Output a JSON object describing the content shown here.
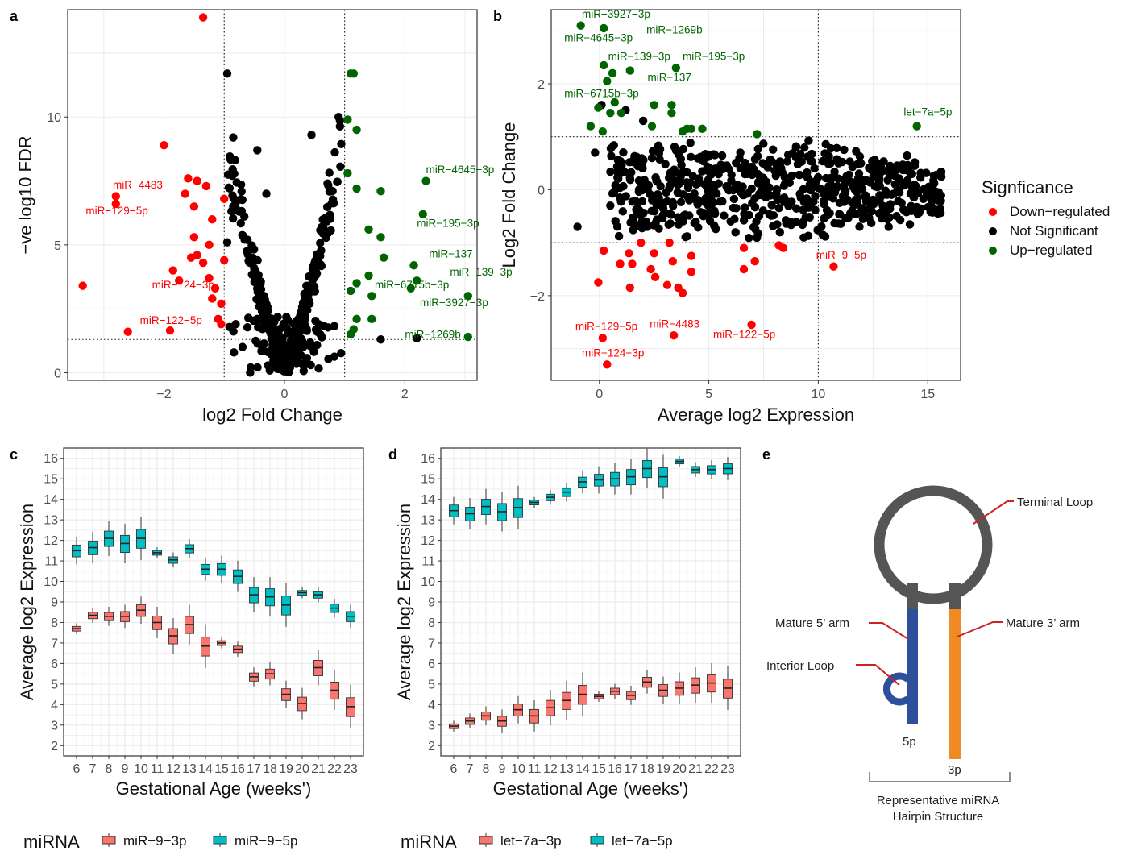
{
  "colors": {
    "down": "#ff0000",
    "ns": "#000000",
    "up": "#006400",
    "box_a": "#f8766d",
    "box_b": "#00bfc4",
    "loop": "#555555",
    "arm5": "#2e4f9c",
    "arm3": "#f08a24",
    "pointer": "#cc2222"
  },
  "panel_labels": {
    "a": "a",
    "b": "b",
    "c": "c",
    "d": "d",
    "e": "e"
  },
  "chart_data": [
    {
      "id": "a",
      "type": "scatter",
      "xlabel": "log2 Fold Change",
      "ylabel": "−ve log10 FDR",
      "xlim": [
        -3.6,
        3.2
      ],
      "ylim": [
        -0.3,
        14.2
      ],
      "xticks": [
        -2,
        0,
        2
      ],
      "xtick_labels": [
        "−2",
        "0",
        "2"
      ],
      "yticks": [
        0,
        5,
        10
      ],
      "ytick_labels": [
        "0",
        "5",
        "10"
      ],
      "grid": true,
      "reference_lines": {
        "x": [
          -1,
          1
        ],
        "y": [
          1.3
        ]
      },
      "groups": {
        "down": [
          [
            -1.35,
            13.9
          ],
          [
            -2.0,
            8.9
          ],
          [
            -1.6,
            7.6
          ],
          [
            -1.45,
            7.5
          ],
          [
            -1.3,
            7.3
          ],
          [
            -1.65,
            7.0
          ],
          [
            -1.5,
            6.5
          ],
          [
            -1.0,
            6.8
          ],
          [
            -1.2,
            6.0
          ],
          [
            -1.5,
            5.3
          ],
          [
            -1.45,
            4.6
          ],
          [
            -1.55,
            4.5
          ],
          [
            -1.35,
            4.3
          ],
          [
            -1.25,
            5.0
          ],
          [
            -1.0,
            4.4
          ],
          [
            -1.85,
            4.0
          ],
          [
            -1.75,
            3.6
          ],
          [
            -1.25,
            3.7
          ],
          [
            -1.15,
            3.3
          ],
          [
            -1.2,
            2.9
          ],
          [
            -1.05,
            2.7
          ],
          [
            -1.1,
            2.1
          ],
          [
            -1.05,
            1.9
          ],
          [
            -2.8,
            6.9
          ],
          [
            -2.8,
            6.6
          ],
          [
            -3.35,
            3.4
          ],
          [
            -2.6,
            1.6
          ],
          [
            -1.9,
            1.65
          ]
        ],
        "ns": [
          [
            -0.95,
            11.7
          ],
          [
            -0.85,
            9.2
          ],
          [
            -0.45,
            8.7
          ],
          [
            -0.3,
            7.0
          ],
          [
            0.45,
            9.3
          ],
          [
            0.9,
            10.0
          ],
          [
            1.6,
            1.3
          ],
          [
            2.2,
            1.35
          ],
          [
            -0.85,
            6.5
          ],
          [
            -0.75,
            6.3
          ],
          [
            -0.95,
            5.1
          ]
        ],
        "up": [
          [
            1.1,
            11.7
          ],
          [
            1.15,
            11.7
          ],
          [
            1.05,
            9.9
          ],
          [
            1.2,
            9.5
          ],
          [
            1.05,
            7.8
          ],
          [
            1.2,
            7.2
          ],
          [
            1.6,
            7.1
          ],
          [
            2.35,
            7.5
          ],
          [
            2.3,
            6.2
          ],
          [
            1.4,
            5.6
          ],
          [
            1.6,
            5.3
          ],
          [
            1.65,
            4.5
          ],
          [
            1.4,
            3.8
          ],
          [
            1.2,
            3.5
          ],
          [
            1.1,
            3.2
          ],
          [
            1.45,
            3.0
          ],
          [
            2.15,
            4.2
          ],
          [
            2.2,
            3.6
          ],
          [
            2.1,
            3.3
          ],
          [
            3.05,
            3.0
          ],
          [
            1.2,
            2.1
          ],
          [
            1.45,
            2.1
          ],
          [
            1.15,
            1.7
          ],
          [
            1.1,
            1.5
          ],
          [
            3.05,
            1.4
          ]
        ]
      },
      "ns_cloud": true,
      "annotations": [
        {
          "text": "miR−4483",
          "group": "down",
          "x": -2.85,
          "y": 7.2
        },
        {
          "text": "miR−129−5p",
          "group": "down",
          "x": -3.3,
          "y": 6.2
        },
        {
          "text": "miR−124−3p",
          "group": "down",
          "x": -2.2,
          "y": 3.3
        },
        {
          "text": "miR−122−5p",
          "group": "down",
          "x": -2.4,
          "y": 1.9
        },
        {
          "text": "miR−4645−3p",
          "group": "up",
          "x": 2.35,
          "y": 7.8
        },
        {
          "text": "miR−195−3p",
          "group": "up",
          "x": 2.2,
          "y": 5.7
        },
        {
          "text": "miR−137",
          "group": "up",
          "x": 2.4,
          "y": 4.5
        },
        {
          "text": "miR−139−3p",
          "group": "up",
          "x": 2.75,
          "y": 3.8
        },
        {
          "text": "miR−6715b−3p",
          "group": "up",
          "x": 1.5,
          "y": 3.3
        },
        {
          "text": "miR−3927−3p",
          "group": "up",
          "x": 2.25,
          "y": 2.6
        },
        {
          "text": "miR−1269b",
          "group": "up",
          "x": 2.0,
          "y": 1.35
        }
      ]
    },
    {
      "id": "b",
      "type": "scatter",
      "xlabel": "Average log2 Expression",
      "ylabel": "Log2 Fold Change",
      "xlim": [
        -2.2,
        16.5
      ],
      "ylim": [
        -3.6,
        3.4
      ],
      "xticks": [
        0,
        5,
        10,
        15
      ],
      "xtick_labels": [
        "0",
        "5",
        "10",
        "15"
      ],
      "yticks": [
        -2,
        0,
        2
      ],
      "ytick_labels": [
        "−2",
        "0",
        "2"
      ],
      "grid": true,
      "reference_lines": {
        "x": [
          10
        ],
        "y": [
          1,
          -1
        ]
      },
      "groups": {
        "down": [
          [
            -0.05,
            -1.75
          ],
          [
            0.2,
            -1.15
          ],
          [
            1.35,
            -1.2
          ],
          [
            0.95,
            -1.4
          ],
          [
            1.5,
            -1.4
          ],
          [
            1.9,
            -1.0
          ],
          [
            2.5,
            -1.2
          ],
          [
            3.2,
            -1.0
          ],
          [
            2.35,
            -1.5
          ],
          [
            2.55,
            -1.65
          ],
          [
            3.35,
            -1.35
          ],
          [
            3.1,
            -1.8
          ],
          [
            3.6,
            -1.85
          ],
          [
            3.8,
            -1.95
          ],
          [
            4.2,
            -1.25
          ],
          [
            4.2,
            -1.55
          ],
          [
            6.6,
            -1.1
          ],
          [
            6.6,
            -1.5
          ],
          [
            7.1,
            -1.35
          ],
          [
            8.2,
            -1.05
          ],
          [
            8.4,
            -1.1
          ],
          [
            10.7,
            -1.45
          ],
          [
            1.4,
            -1.85
          ],
          [
            0.15,
            -2.8
          ],
          [
            3.4,
            -2.75
          ],
          [
            6.95,
            -2.55
          ],
          [
            0.35,
            -3.3
          ]
        ],
        "ns": [
          [
            0.1,
            1.6
          ],
          [
            1.2,
            1.5
          ],
          [
            2.0,
            1.3
          ],
          [
            -0.2,
            0.7
          ],
          [
            0.5,
            -0.3
          ],
          [
            2.4,
            0.6
          ],
          [
            -1.0,
            -0.7
          ],
          [
            10.2,
            -0.85
          ],
          [
            15.5,
            -0.05
          ],
          [
            14.4,
            0.45
          ],
          [
            13.8,
            -0.25
          ]
        ],
        "up": [
          [
            -0.85,
            3.1
          ],
          [
            0.2,
            3.05
          ],
          [
            0.2,
            2.35
          ],
          [
            0.6,
            2.2
          ],
          [
            0.35,
            2.05
          ],
          [
            1.4,
            2.25
          ],
          [
            3.5,
            2.3
          ],
          [
            -0.05,
            1.55
          ],
          [
            0.7,
            1.65
          ],
          [
            1.0,
            1.45
          ],
          [
            0.5,
            1.45
          ],
          [
            2.5,
            1.6
          ],
          [
            3.3,
            1.6
          ],
          [
            3.3,
            1.45
          ],
          [
            2.4,
            1.2
          ],
          [
            -0.4,
            1.2
          ],
          [
            0.15,
            1.1
          ],
          [
            3.8,
            1.1
          ],
          [
            4.0,
            1.15
          ],
          [
            4.2,
            1.15
          ],
          [
            4.7,
            1.15
          ],
          [
            7.2,
            1.05
          ],
          [
            14.5,
            1.2
          ]
        ]
      },
      "ns_cloud": true,
      "annotations": [
        {
          "text": "miR−3927−3p",
          "group": "up",
          "x": -0.8,
          "y": 3.25
        },
        {
          "text": "miR−1269b",
          "group": "up",
          "x": 2.15,
          "y": 2.95
        },
        {
          "text": "miR−4645−3p",
          "group": "up",
          "x": -1.6,
          "y": 2.8
        },
        {
          "text": "miR−139−3p",
          "group": "up",
          "x": 0.4,
          "y": 2.45
        },
        {
          "text": "miR−195−3p",
          "group": "up",
          "x": 3.8,
          "y": 2.45
        },
        {
          "text": "miR−137",
          "group": "up",
          "x": 2.2,
          "y": 2.05
        },
        {
          "text": "miR−6715b−3p",
          "group": "up",
          "x": -1.6,
          "y": 1.75
        },
        {
          "text": "let−7a−5p",
          "group": "up",
          "x": 13.9,
          "y": 1.4
        },
        {
          "text": "miR−9−5p",
          "group": "down",
          "x": 9.9,
          "y": -1.3
        },
        {
          "text": "miR−129−5p",
          "group": "down",
          "x": -1.1,
          "y": -2.65
        },
        {
          "text": "miR−4483",
          "group": "down",
          "x": 2.3,
          "y": -2.6
        },
        {
          "text": "miR−122−5p",
          "group": "down",
          "x": 5.2,
          "y": -2.8
        },
        {
          "text": "miR−124−3p",
          "group": "down",
          "x": -0.8,
          "y": -3.15
        }
      ]
    },
    {
      "id": "c",
      "type": "box",
      "xlabel": "Gestational Age (weeks')",
      "ylabel": "Average log2 Expression",
      "ylim": [
        1.5,
        16.5
      ],
      "yticks": [
        2,
        3,
        4,
        5,
        6,
        7,
        8,
        9,
        10,
        11,
        12,
        13,
        14,
        15,
        16
      ],
      "categories": [
        "6",
        "7",
        "8",
        "9",
        "10",
        "11",
        "12",
        "13",
        "14",
        "15",
        "16",
        "17",
        "18",
        "19",
        "20",
        "21",
        "22",
        "23"
      ],
      "legend_title": "miRNA",
      "series": [
        {
          "name": "miR−9−3p",
          "color_key": "box_a",
          "values": [
            7.7,
            8.35,
            8.3,
            8.3,
            8.6,
            8.0,
            7.35,
            7.9,
            6.85,
            7.0,
            6.7,
            5.35,
            5.5,
            4.5,
            4.05,
            5.8,
            4.7,
            3.9
          ]
        },
        {
          "name": "miR−9−5p",
          "color_key": "box_b",
          "values": [
            11.5,
            11.65,
            12.1,
            11.85,
            12.1,
            11.4,
            11.05,
            11.6,
            10.6,
            10.6,
            10.25,
            9.35,
            9.25,
            8.85,
            9.45,
            9.35,
            8.7,
            8.3
          ]
        }
      ]
    },
    {
      "id": "d",
      "type": "box",
      "xlabel": "Gestational Age (weeks')",
      "ylabel": "Average log2 Expression",
      "ylim": [
        1.5,
        16.5
      ],
      "yticks": [
        2,
        3,
        4,
        5,
        6,
        7,
        8,
        9,
        10,
        11,
        12,
        13,
        14,
        15,
        16
      ],
      "categories": [
        "6",
        "7",
        "8",
        "9",
        "10",
        "11",
        "12",
        "13",
        "14",
        "15",
        "16",
        "17",
        "18",
        "19",
        "20",
        "21",
        "22",
        "23"
      ],
      "legend_title": "miRNA",
      "series": [
        {
          "name": "let−7a−3p",
          "color_key": "box_a",
          "values": [
            2.95,
            3.2,
            3.45,
            3.2,
            3.75,
            3.45,
            3.85,
            4.2,
            4.5,
            4.4,
            4.65,
            4.45,
            5.1,
            4.7,
            4.8,
            4.95,
            5.05,
            4.8
          ]
        },
        {
          "name": "let−7a−5p",
          "color_key": "box_b",
          "values": [
            13.45,
            13.3,
            13.65,
            13.4,
            13.6,
            13.85,
            14.1,
            14.35,
            14.85,
            14.95,
            15.0,
            15.1,
            15.5,
            15.1,
            15.85,
            15.45,
            15.45,
            15.5
          ]
        }
      ]
    }
  ],
  "legend_b": {
    "title": "Signficance",
    "items": [
      {
        "label": "Down−regulated",
        "color_key": "down"
      },
      {
        "label": "Not Significant",
        "color_key": "ns"
      },
      {
        "label": "Up−regulated",
        "color_key": "up"
      }
    ]
  },
  "panel_e": {
    "terminal_loop": "Terminal Loop",
    "mature_5": "Mature 5’ arm",
    "mature_3": "Mature 3’ arm",
    "interior_loop": "Interior Loop",
    "label_5p": "5p",
    "label_3p": "3p",
    "caption_1": "Representative miRNA",
    "caption_2": "Hairpin Structure"
  }
}
